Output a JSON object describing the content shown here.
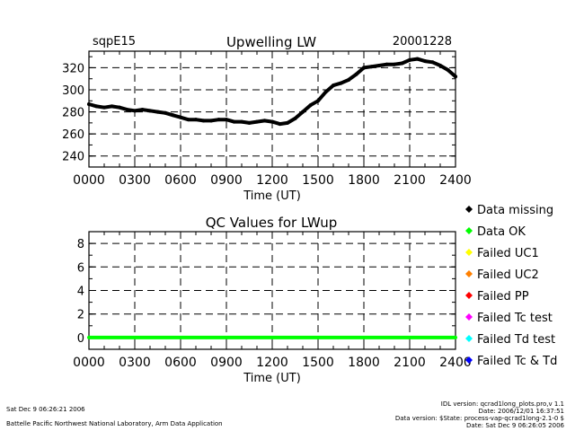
{
  "header": {
    "site": "sqpE15",
    "title": "Upwelling LW",
    "date": "20001228"
  },
  "chart_data": [
    {
      "type": "line",
      "title": "Upwelling LW",
      "xlabel": "Time (UT)",
      "ylabel": "",
      "xlim": [
        0,
        24
      ],
      "ylim": [
        230,
        335
      ],
      "x_tick_labels": [
        "0000",
        "0300",
        "0600",
        "0900",
        "1200",
        "1500",
        "1800",
        "2100",
        "2400"
      ],
      "y_ticks": [
        240,
        260,
        280,
        300,
        320
      ],
      "grid": "dashed",
      "series": [
        {
          "x": [
            0.0,
            0.5,
            1.0,
            1.5,
            2.0,
            2.5,
            3.0,
            3.5,
            4.0,
            4.5,
            5.0,
            5.5,
            6.0,
            6.5,
            7.0,
            7.5,
            8.0,
            8.5,
            9.0,
            9.5,
            10.0,
            10.5,
            11.0,
            11.5,
            12.0,
            12.5,
            13.0,
            13.5,
            14.0,
            14.5,
            15.0,
            15.5,
            16.0,
            16.5,
            17.0,
            17.5,
            18.0,
            18.5,
            19.0,
            19.5,
            20.0,
            20.5,
            21.0,
            21.5,
            22.0,
            22.5,
            23.0,
            23.5,
            24.0
          ],
          "y": [
            287,
            285,
            284,
            285,
            284,
            282,
            281,
            282,
            281,
            280,
            279,
            277,
            275,
            273,
            273,
            272,
            272,
            273,
            273,
            271,
            271,
            270,
            271,
            272,
            271,
            269,
            270,
            274,
            280,
            286,
            290,
            298,
            304,
            306,
            309,
            314,
            320,
            321,
            322,
            323,
            323,
            324,
            327,
            328,
            326,
            325,
            322,
            318,
            312
          ]
        }
      ]
    },
    {
      "type": "line",
      "title": "QC Values for LWup",
      "xlabel": "Time (UT)",
      "ylabel": "",
      "xlim": [
        0,
        24
      ],
      "ylim": [
        -1,
        9
      ],
      "x_tick_labels": [
        "0000",
        "0300",
        "0600",
        "0900",
        "1200",
        "1500",
        "1800",
        "2100",
        "2400"
      ],
      "y_ticks": [
        0,
        2,
        4,
        6,
        8
      ],
      "grid": "dashed",
      "series": [
        {
          "name": "Data OK",
          "x": [
            0,
            24
          ],
          "y": [
            0,
            0
          ]
        }
      ]
    }
  ],
  "legend": [
    {
      "label": "Data missing",
      "color": "#000000"
    },
    {
      "label": "Data OK",
      "color": "#00ff00"
    },
    {
      "label": "Failed UC1",
      "color": "#ffff00"
    },
    {
      "label": "Failed UC2",
      "color": "#ff8000"
    },
    {
      "label": "Failed PP",
      "color": "#ff0000"
    },
    {
      "label": "Failed Tc test",
      "color": "#ff00ff"
    },
    {
      "label": "Failed Td test",
      "color": "#00ffff"
    },
    {
      "label": "Failed Tc & Td",
      "color": "#0000ff"
    }
  ],
  "footer": {
    "datetime": "Sat Dec  9 06:26:21 2006",
    "lab": "Battelle Pacific Northwest National Laboratory, Arm Data Application",
    "idl_line1": "IDL version: qcrad1long_plots.pro,v 1.1",
    "idl_line2": "Date: 2006/12/01 16:37:51",
    "idl_line3": "Data version: $State: process-vap-qcrad1long-2.1-0 $",
    "idl_line4": "Date: Sat Dec  9 06:26:05 2006"
  },
  "colors": {
    "data_line": "#000000",
    "qc_line": "#00ff00"
  }
}
